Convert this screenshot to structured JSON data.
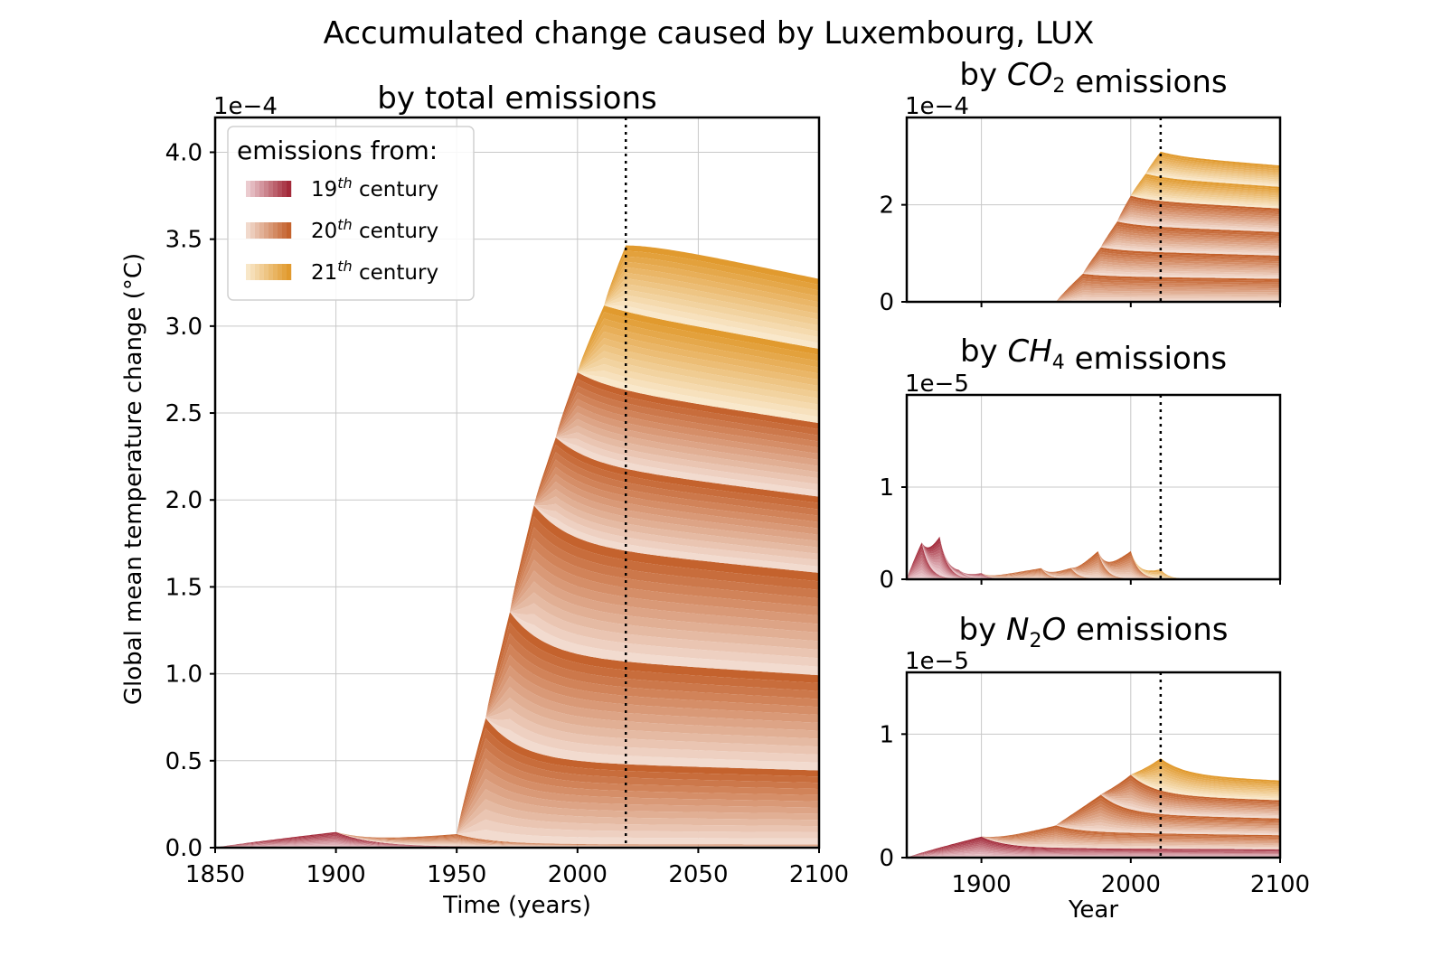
{
  "figure": {
    "title": "Accumulated change caused by Luxembourg, LUX"
  },
  "colors": {
    "c19_light": "#f3dde0",
    "c19_dark": "#a32a3a",
    "c20_light": "#f6e6de",
    "c20_dark": "#c4622d",
    "c21_light": "#fbefd9",
    "c21_dark": "#e19a2e",
    "grid": "#c8c8c8",
    "reference_line": "#000000"
  },
  "legend": {
    "title": "emissions from:",
    "items": [
      {
        "base": "19",
        "sup": "th",
        "rest": " century",
        "color_key": "c19"
      },
      {
        "base": "20",
        "sup": "th",
        "rest": " century",
        "color_key": "c20"
      },
      {
        "base": "21",
        "sup": "th",
        "rest": " century",
        "color_key": "c21"
      }
    ],
    "placement": "upper-left"
  },
  "chart_data": [
    {
      "id": "total",
      "type": "area",
      "stacked": true,
      "title": "by total emissions",
      "xlabel": "Time (years)",
      "ylabel": "Global mean temperature change (°C)",
      "offset_text": "1e−4",
      "scale": 0.0001,
      "xlim": [
        1850,
        2100
      ],
      "ylim": [
        0,
        4.2
      ],
      "xticks": [
        1850,
        1900,
        1950,
        2000,
        2050,
        2100
      ],
      "xtick_labels": [
        "1850",
        "1900",
        "1950",
        "2000",
        "2050",
        "2100"
      ],
      "yticks": [
        0,
        0.5,
        1.0,
        1.5,
        2.0,
        2.5,
        3.0,
        3.5,
        4.0
      ],
      "ytick_labels": [
        "0.0",
        "0.5",
        "1.0",
        "1.5",
        "2.0",
        "2.5",
        "3.0",
        "3.5",
        "4.0"
      ],
      "reference_year": 2020,
      "grid": true,
      "bands": [
        {
          "start": 1850,
          "end": 1900,
          "century": "c19",
          "early_peak": 0.05,
          "peak": 0.09,
          "end_value": 0.005,
          "tail": 0.92
        },
        {
          "start": 1900,
          "end": 1950,
          "century": "c20",
          "early_peak": 0.05,
          "peak": 0.07,
          "end_value": 0.015,
          "tail": 0.92
        },
        {
          "start": 1950,
          "end": 1962,
          "century": "c20",
          "early_peak": 0,
          "peak": 0.7,
          "end_value": 0.48,
          "tail": 0.8
        },
        {
          "start": 1962,
          "end": 1972,
          "century": "c20",
          "early_peak": 0,
          "peak": 0.74,
          "end_value": 0.61,
          "tail": 0.8
        },
        {
          "start": 1972,
          "end": 1982,
          "century": "c20",
          "early_peak": 0,
          "peak": 0.75,
          "end_value": 0.65,
          "tail": 0.8
        },
        {
          "start": 1982,
          "end": 1991,
          "century": "c20",
          "early_peak": 0,
          "peak": 0.51,
          "end_value": 0.48,
          "tail": 0.8
        },
        {
          "start": 1991,
          "end": 2000,
          "century": "c20",
          "early_peak": 0,
          "peak": 0.46,
          "end_value": 0.46,
          "tail": 0.8
        },
        {
          "start": 2000,
          "end": 2011,
          "century": "c21",
          "early_peak": 0,
          "peak": 0.45,
          "end_value": 0.46,
          "tail": 0.8
        },
        {
          "start": 2011,
          "end": 2020,
          "century": "c21",
          "early_peak": 0,
          "peak": 0.38,
          "end_value": 0.43,
          "tail": 0.8
        }
      ]
    },
    {
      "id": "co2",
      "type": "area",
      "stacked": true,
      "title_prefix": "by ",
      "gas_main": "CO",
      "gas_sub": "2",
      "gas_rest": "",
      "title_suffix": " emissions",
      "offset_text": "1e−4",
      "scale": 0.0001,
      "xlim": [
        1850,
        2100
      ],
      "ylim": [
        0,
        3.8
      ],
      "xticks": [
        1900,
        2000,
        2100
      ],
      "yticks": [
        0,
        2
      ],
      "ytick_labels": [
        "0",
        "2"
      ],
      "reference_year": 2020,
      "grid": true,
      "bands": [
        {
          "start": 1950,
          "end": 1968,
          "century": "c20",
          "early_peak": 0,
          "peak": 0.58,
          "end_value": 0.53,
          "tail": 0.8
        },
        {
          "start": 1968,
          "end": 1980,
          "century": "c20",
          "early_peak": 0,
          "peak": 0.58,
          "end_value": 0.53,
          "tail": 0.8
        },
        {
          "start": 1980,
          "end": 1991,
          "century": "c20",
          "early_peak": 0,
          "peak": 0.58,
          "end_value": 0.53,
          "tail": 0.8
        },
        {
          "start": 1991,
          "end": 2000,
          "century": "c20",
          "early_peak": 0,
          "peak": 0.58,
          "end_value": 0.53,
          "tail": 0.8
        },
        {
          "start": 2000,
          "end": 2010,
          "century": "c21",
          "early_peak": 0,
          "peak": 0.52,
          "end_value": 0.48,
          "tail": 0.8
        },
        {
          "start": 2010,
          "end": 2020,
          "century": "c21",
          "early_peak": 0,
          "peak": 0.52,
          "end_value": 0.47,
          "tail": 0.8
        }
      ]
    },
    {
      "id": "ch4",
      "type": "area",
      "stacked": true,
      "title_prefix": "by ",
      "gas_main": "CH",
      "gas_sub": "4",
      "gas_rest": "",
      "title_suffix": " emissions",
      "offset_text": "1e−5",
      "scale": 1e-05,
      "xlim": [
        1850,
        2100
      ],
      "ylim": [
        0,
        2.0
      ],
      "xticks": [
        1900,
        2000,
        2100
      ],
      "yticks": [
        0,
        1
      ],
      "ytick_labels": [
        "0",
        "1"
      ],
      "reference_year": 2020,
      "grid": true,
      "bands": [
        {
          "start": 1850,
          "end": 1860,
          "century": "c19",
          "early_peak": 0,
          "peak": 0.4,
          "end_value": 0,
          "tail": 0.08
        },
        {
          "start": 1860,
          "end": 1872,
          "century": "c19",
          "early_peak": 0,
          "peak": 0.42,
          "end_value": 0,
          "tail": 0.08
        },
        {
          "start": 1872,
          "end": 1885,
          "century": "c19",
          "early_peak": 0,
          "peak": 0.06,
          "end_value": 0,
          "tail": 0.08
        },
        {
          "start": 1885,
          "end": 1900,
          "century": "c19",
          "early_peak": 0,
          "peak": 0.06,
          "end_value": 0,
          "tail": 0.08
        },
        {
          "start": 1900,
          "end": 1940,
          "century": "c20",
          "early_peak": 0,
          "peak": 0.12,
          "end_value": 0,
          "tail": 0.08
        },
        {
          "start": 1940,
          "end": 1960,
          "century": "c20",
          "early_peak": 0,
          "peak": 0.12,
          "end_value": 0,
          "tail": 0.08
        },
        {
          "start": 1960,
          "end": 1978,
          "century": "c20",
          "early_peak": 0,
          "peak": 0.3,
          "end_value": 0,
          "tail": 0.08
        },
        {
          "start": 1978,
          "end": 2000,
          "century": "c20",
          "early_peak": 0,
          "peak": 0.3,
          "end_value": 0,
          "tail": 0.08
        },
        {
          "start": 2000,
          "end": 2020,
          "century": "c21",
          "early_peak": 0,
          "peak": 0.1,
          "end_value": 0,
          "tail": 0.08
        }
      ]
    },
    {
      "id": "n2o",
      "type": "area",
      "stacked": true,
      "title_prefix": "by ",
      "gas_main": "N",
      "gas_sub": "2",
      "gas_rest": "O",
      "title_suffix": " emissions",
      "offset_text": "1e−5",
      "xlabel": "Year",
      "scale": 1e-05,
      "xlim": [
        1850,
        2100
      ],
      "ylim": [
        0,
        1.5
      ],
      "xticks": [
        1900,
        2000,
        2100
      ],
      "xtick_labels": [
        "1900",
        "2000",
        "2100"
      ],
      "yticks": [
        0,
        1
      ],
      "ytick_labels": [
        "0",
        "1"
      ],
      "reference_year": 2020,
      "grid": true,
      "bands": [
        {
          "start": 1850,
          "end": 1900,
          "century": "c19",
          "early_peak": 0.11,
          "peak": 0.17,
          "end_value": 0.08,
          "tail": 1.0
        },
        {
          "start": 1900,
          "end": 1950,
          "century": "c20",
          "early_peak": 0.06,
          "peak": 0.18,
          "end_value": 0.13,
          "tail": 1.0
        },
        {
          "start": 1950,
          "end": 1980,
          "century": "c20",
          "early_peak": 0,
          "peak": 0.3,
          "end_value": 0.15,
          "tail": 1.0
        },
        {
          "start": 1980,
          "end": 2000,
          "century": "c20",
          "early_peak": 0,
          "peak": 0.28,
          "end_value": 0.16,
          "tail": 1.0
        },
        {
          "start": 2000,
          "end": 2020,
          "century": "c21",
          "early_peak": 0,
          "peak": 0.26,
          "end_value": 0.17,
          "tail": 1.0
        }
      ]
    }
  ]
}
